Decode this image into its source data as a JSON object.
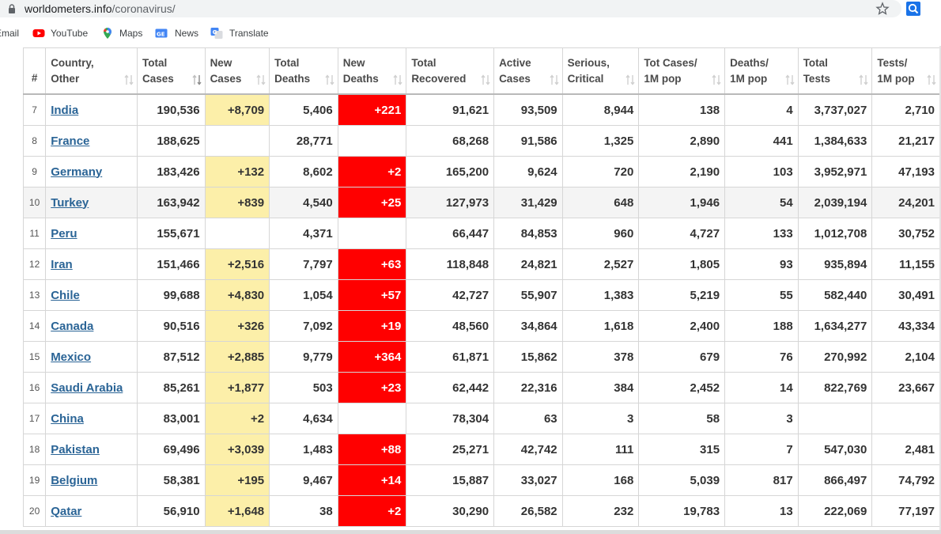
{
  "browser": {
    "url_host": "worldometers.info",
    "url_path": "/coronavirus/",
    "bookmarks": [
      {
        "label": "Email",
        "icon": "gmail-icon"
      },
      {
        "label": "YouTube",
        "icon": "youtube-icon"
      },
      {
        "label": "Maps",
        "icon": "maps-icon"
      },
      {
        "label": "News",
        "icon": "news-icon"
      },
      {
        "label": "Translate",
        "icon": "translate-icon"
      }
    ]
  },
  "table": {
    "headers": [
      {
        "line1": "#",
        "line2": ""
      },
      {
        "line1": "Country,",
        "line2": "Other"
      },
      {
        "line1": "Total",
        "line2": "Cases"
      },
      {
        "line1": "New",
        "line2": "Cases"
      },
      {
        "line1": "Total",
        "line2": "Deaths"
      },
      {
        "line1": "New",
        "line2": "Deaths"
      },
      {
        "line1": "Total",
        "line2": "Recovered"
      },
      {
        "line1": "Active",
        "line2": "Cases"
      },
      {
        "line1": "Serious,",
        "line2": "Critical"
      },
      {
        "line1": "Tot Cases/",
        "line2": "1M pop"
      },
      {
        "line1": "Deaths/",
        "line2": "1M pop"
      },
      {
        "line1": "Total",
        "line2": "Tests"
      },
      {
        "line1": "Tests/",
        "line2": "1M pop"
      }
    ],
    "rows": [
      {
        "idx": "7",
        "country": "India",
        "total_cases": "190,536",
        "new_cases": "+8,709",
        "total_deaths": "5,406",
        "new_deaths": "+221",
        "total_recovered": "91,621",
        "active": "93,509",
        "critical": "8,944",
        "cases_1m": "138",
        "deaths_1m": "4",
        "total_tests": "3,737,027",
        "tests_1m": "2,710"
      },
      {
        "idx": "8",
        "country": "France",
        "total_cases": "188,625",
        "new_cases": "",
        "total_deaths": "28,771",
        "new_deaths": "",
        "total_recovered": "68,268",
        "active": "91,586",
        "critical": "1,325",
        "cases_1m": "2,890",
        "deaths_1m": "441",
        "total_tests": "1,384,633",
        "tests_1m": "21,217"
      },
      {
        "idx": "9",
        "country": "Germany",
        "total_cases": "183,426",
        "new_cases": "+132",
        "total_deaths": "8,602",
        "new_deaths": "+2",
        "total_recovered": "165,200",
        "active": "9,624",
        "critical": "720",
        "cases_1m": "2,190",
        "deaths_1m": "103",
        "total_tests": "3,952,971",
        "tests_1m": "47,193"
      },
      {
        "idx": "10",
        "country": "Turkey",
        "total_cases": "163,942",
        "new_cases": "+839",
        "total_deaths": "4,540",
        "new_deaths": "+25",
        "total_recovered": "127,973",
        "active": "31,429",
        "critical": "648",
        "cases_1m": "1,946",
        "deaths_1m": "54",
        "total_tests": "2,039,194",
        "tests_1m": "24,201"
      },
      {
        "idx": "11",
        "country": "Peru",
        "total_cases": "155,671",
        "new_cases": "",
        "total_deaths": "4,371",
        "new_deaths": "",
        "total_recovered": "66,447",
        "active": "84,853",
        "critical": "960",
        "cases_1m": "4,727",
        "deaths_1m": "133",
        "total_tests": "1,012,708",
        "tests_1m": "30,752"
      },
      {
        "idx": "12",
        "country": "Iran",
        "total_cases": "151,466",
        "new_cases": "+2,516",
        "total_deaths": "7,797",
        "new_deaths": "+63",
        "total_recovered": "118,848",
        "active": "24,821",
        "critical": "2,527",
        "cases_1m": "1,805",
        "deaths_1m": "93",
        "total_tests": "935,894",
        "tests_1m": "11,155"
      },
      {
        "idx": "13",
        "country": "Chile",
        "total_cases": "99,688",
        "new_cases": "+4,830",
        "total_deaths": "1,054",
        "new_deaths": "+57",
        "total_recovered": "42,727",
        "active": "55,907",
        "critical": "1,383",
        "cases_1m": "5,219",
        "deaths_1m": "55",
        "total_tests": "582,440",
        "tests_1m": "30,491"
      },
      {
        "idx": "14",
        "country": "Canada",
        "total_cases": "90,516",
        "new_cases": "+326",
        "total_deaths": "7,092",
        "new_deaths": "+19",
        "total_recovered": "48,560",
        "active": "34,864",
        "critical": "1,618",
        "cases_1m": "2,400",
        "deaths_1m": "188",
        "total_tests": "1,634,277",
        "tests_1m": "43,334"
      },
      {
        "idx": "15",
        "country": "Mexico",
        "total_cases": "87,512",
        "new_cases": "+2,885",
        "total_deaths": "9,779",
        "new_deaths": "+364",
        "total_recovered": "61,871",
        "active": "15,862",
        "critical": "378",
        "cases_1m": "679",
        "deaths_1m": "76",
        "total_tests": "270,992",
        "tests_1m": "2,104"
      },
      {
        "idx": "16",
        "country": "Saudi Arabia",
        "total_cases": "85,261",
        "new_cases": "+1,877",
        "total_deaths": "503",
        "new_deaths": "+23",
        "total_recovered": "62,442",
        "active": "22,316",
        "critical": "384",
        "cases_1m": "2,452",
        "deaths_1m": "14",
        "total_tests": "822,769",
        "tests_1m": "23,667"
      },
      {
        "idx": "17",
        "country": "China",
        "total_cases": "83,001",
        "new_cases": "+2",
        "total_deaths": "4,634",
        "new_deaths": "",
        "total_recovered": "78,304",
        "active": "63",
        "critical": "3",
        "cases_1m": "58",
        "deaths_1m": "3",
        "total_tests": "",
        "tests_1m": ""
      },
      {
        "idx": "18",
        "country": "Pakistan",
        "total_cases": "69,496",
        "new_cases": "+3,039",
        "total_deaths": "1,483",
        "new_deaths": "+88",
        "total_recovered": "25,271",
        "active": "42,742",
        "critical": "111",
        "cases_1m": "315",
        "deaths_1m": "7",
        "total_tests": "547,030",
        "tests_1m": "2,481"
      },
      {
        "idx": "19",
        "country": "Belgium",
        "total_cases": "58,381",
        "new_cases": "+195",
        "total_deaths": "9,467",
        "new_deaths": "+14",
        "total_recovered": "15,887",
        "active": "33,027",
        "critical": "168",
        "cases_1m": "5,039",
        "deaths_1m": "817",
        "total_tests": "866,497",
        "tests_1m": "74,792"
      },
      {
        "idx": "20",
        "country": "Qatar",
        "total_cases": "56,910",
        "new_cases": "+1,648",
        "total_deaths": "38",
        "new_deaths": "+2",
        "total_recovered": "30,290",
        "active": "26,582",
        "critical": "232",
        "cases_1m": "19,783",
        "deaths_1m": "13",
        "total_tests": "222,069",
        "tests_1m": "77,197"
      }
    ]
  },
  "colors": {
    "new_cases_bg": "#fcefa9",
    "new_deaths_bg": "#ff0000",
    "link": "#2a6496",
    "alt_row_bg": "#f4f4f4"
  }
}
